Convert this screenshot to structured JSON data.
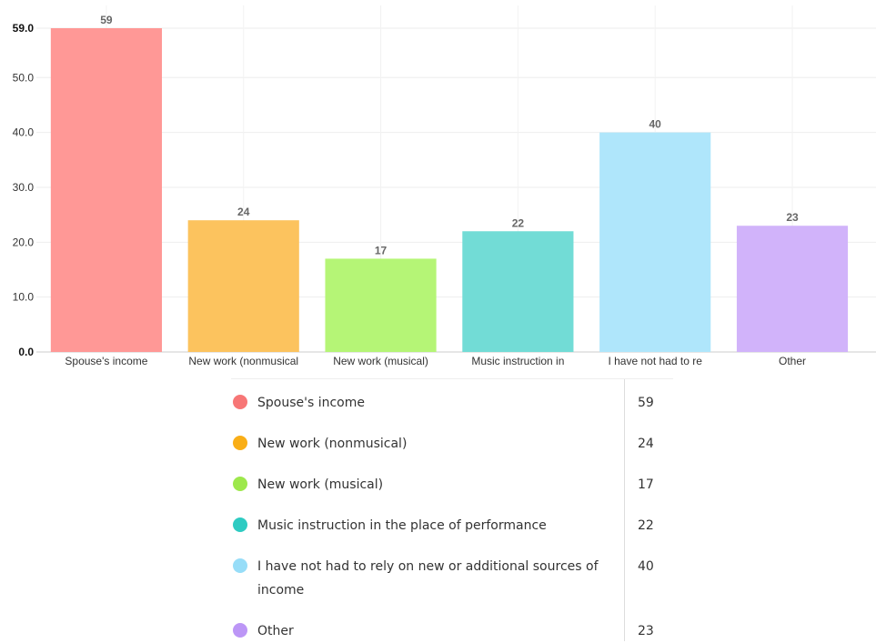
{
  "chart_data": {
    "type": "bar",
    "categories": [
      "Spouse's income",
      "New work (nonmusical",
      "New work (musical)",
      "Music instruction in",
      "I have not had to re",
      "Other"
    ],
    "values": [
      59,
      24,
      17,
      22,
      40,
      23
    ],
    "colors": [
      "#ff9896",
      "#fcc35e",
      "#b5f576",
      "#72dcd6",
      "#afe6fb",
      "#d1b3fa"
    ],
    "data_labels": [
      "59",
      "24",
      "17",
      "22",
      "40",
      "23"
    ],
    "ylim": [
      0,
      59
    ],
    "yticks": [
      "0.0",
      "10.0",
      "20.0",
      "30.0",
      "40.0",
      "50.0",
      "59.0"
    ],
    "ytick_values": [
      0,
      10,
      20,
      30,
      40,
      50,
      59
    ],
    "grid": true,
    "title": "",
    "xlabel": "",
    "ylabel": ""
  },
  "legend": {
    "items": [
      {
        "label": "Spouse's income",
        "value": "59",
        "color": "#f77676"
      },
      {
        "label": "New work (nonmusical)",
        "value": "24",
        "color": "#f9ae17"
      },
      {
        "label": "New work (musical)",
        "value": "17",
        "color": "#9de84c"
      },
      {
        "label": "Music instruction in the place of performance",
        "value": "22",
        "color": "#2ecbc2"
      },
      {
        "label": "I have not had to rely on new or additional sources of income",
        "value": "40",
        "color": "#97ddf8"
      },
      {
        "label": "Other",
        "value": "23",
        "color": "#bc96f6"
      }
    ]
  }
}
